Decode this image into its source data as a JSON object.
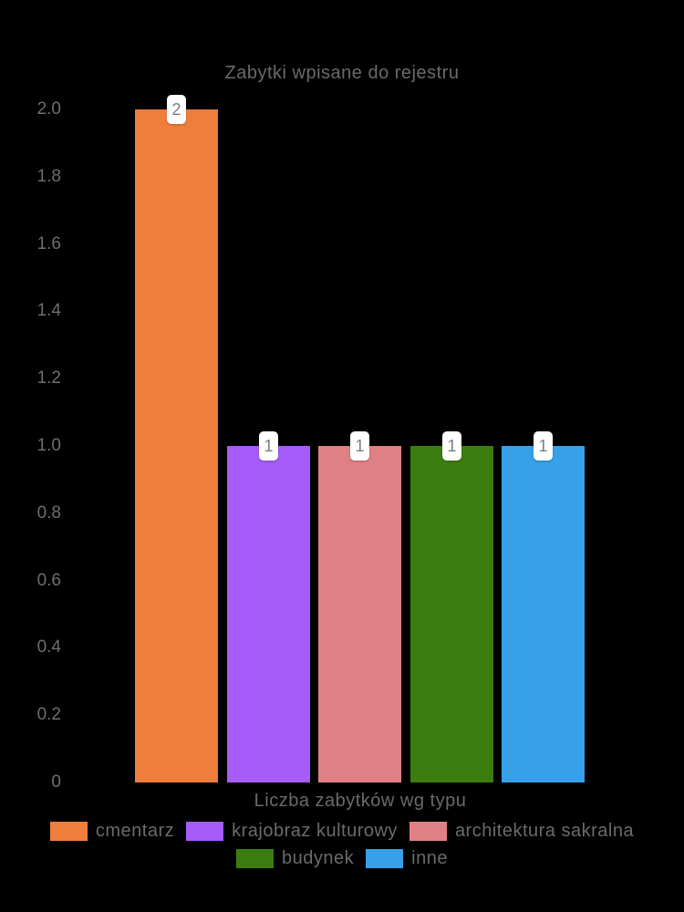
{
  "chart": {
    "title": "Zabytki wpisane do rejestru",
    "xlabel": "Liczba zabytków wg typu"
  },
  "chart_data": {
    "type": "bar",
    "title": "Zabytki wpisane do rejestru",
    "xlabel": "Liczba zabytków wg typu",
    "ylabel": "",
    "ylim": [
      0,
      2
    ],
    "grid": false,
    "legend_position": "bottom",
    "y_tick_labels": [
      "0",
      "0.2",
      "0.4",
      "0.6",
      "0.8",
      "1.0",
      "1.2",
      "1.4",
      "1.6",
      "1.8",
      "2.0"
    ],
    "y_tick_values": [
      0,
      0.2,
      0.4,
      0.6,
      0.8,
      1.0,
      1.2,
      1.4,
      1.6,
      1.8,
      2.0
    ],
    "categories": [
      "cmentarz",
      "krajobraz kulturowy",
      "architektura sakralna",
      "budynek",
      "inne"
    ],
    "values": [
      2,
      1,
      1,
      1,
      1
    ],
    "bar_value_labels": [
      "2",
      "1",
      "1",
      "1",
      "1"
    ],
    "bar_colors": [
      "#ee7e3c",
      "#a55cf8",
      "#df8184",
      "#3c7d10",
      "#37a0e8"
    ],
    "legend_rows": [
      [
        0,
        1,
        2
      ],
      [
        3,
        4
      ]
    ],
    "colors": {
      "background": "#000000",
      "axis_text": "#6e6e6e",
      "label_text": "#6a6a6a",
      "value_label_text": "#7e7e7e",
      "value_label_bg": "#ffffff"
    }
  }
}
